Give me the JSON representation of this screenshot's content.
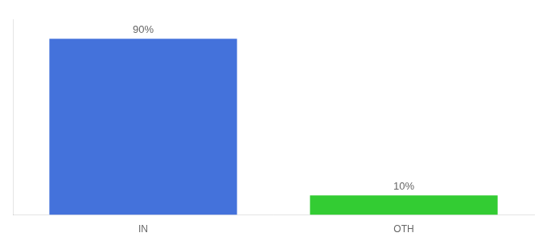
{
  "chart_data": {
    "type": "bar",
    "categories": [
      "IN",
      "OTH"
    ],
    "values": [
      90,
      10
    ],
    "value_labels": [
      "90%",
      "10%"
    ],
    "colors": [
      "#4472db",
      "#33cc33"
    ],
    "ylim": [
      0,
      100
    ],
    "yticks": [],
    "tick_labels": "x",
    "data_labels": true,
    "grid": false
  }
}
